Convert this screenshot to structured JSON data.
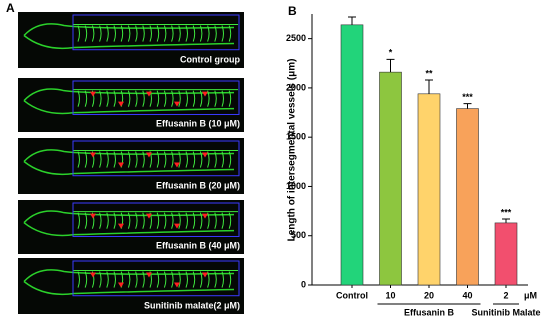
{
  "panel_a": {
    "label": "A",
    "images": [
      "Control group",
      "Effusanin B (10 μM)",
      "Effusanin B (20 μM)",
      "Effusanin B (40 μM)",
      "Sunitinib malate(2 μM)"
    ]
  },
  "chart_data": {
    "type": "bar",
    "panel_label": "B",
    "ylabel": "Length of intersegmental vessels (μm)",
    "categories": [
      "Control",
      "10",
      "20",
      "40",
      "2"
    ],
    "unit_label": "μM",
    "groups": [
      {
        "label": "Effusanin B",
        "categories": [
          1,
          3
        ]
      },
      {
        "label": "Sunitinib Malate",
        "categories": [
          4,
          4
        ]
      }
    ],
    "values": [
      2640,
      2160,
      1940,
      1790,
      630
    ],
    "errors": [
      80,
      130,
      140,
      50,
      40
    ],
    "significance": [
      null,
      "*",
      "**",
      "***",
      "***"
    ],
    "colors": [
      "#22d47a",
      "#8dc63f",
      "#ffd36b",
      "#f8a25a",
      "#f24f6e"
    ],
    "ylim": [
      0,
      2750
    ],
    "yticks": [
      0,
      500,
      1000,
      1500,
      2000,
      2500
    ]
  }
}
